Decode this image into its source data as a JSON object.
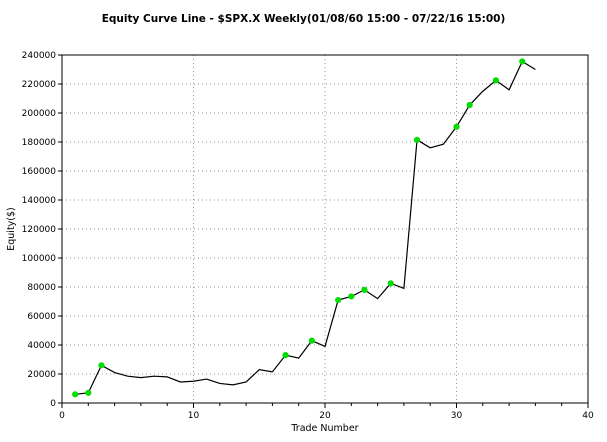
{
  "chart_data": {
    "type": "line",
    "title": "Equity Curve Line - $SPX.X Weekly(01/08/60 15:00 - 07/22/16 15:00)",
    "xlabel": "Trade Number",
    "ylabel": "Equity($)",
    "xlim": [
      0,
      40
    ],
    "ylim": [
      0,
      240000
    ],
    "x_major_ticks": [
      0,
      10,
      20,
      30,
      40
    ],
    "x_minor_step": 2,
    "y_ticks": [
      0,
      20000,
      40000,
      60000,
      80000,
      100000,
      120000,
      140000,
      160000,
      180000,
      200000,
      220000,
      240000
    ],
    "grid": {
      "x_lines": [
        10,
        20,
        30
      ],
      "y_lines": [
        20000,
        40000,
        60000,
        80000,
        100000,
        120000,
        140000,
        160000,
        180000,
        200000,
        220000
      ],
      "style": "dotted",
      "color": "#999999"
    },
    "legend_position": "none",
    "line_color": "#000000",
    "marker_color": "#00dd00",
    "axis_color": "#000000",
    "x": [
      1,
      2,
      3,
      4,
      5,
      6,
      7,
      8,
      9,
      10,
      11,
      12,
      13,
      14,
      15,
      16,
      17,
      18,
      19,
      20,
      21,
      22,
      23,
      24,
      25,
      26,
      27,
      28,
      29,
      30,
      31,
      32,
      33,
      34,
      35,
      36
    ],
    "values": [
      6000,
      7000,
      26000,
      21000,
      18500,
      17500,
      18500,
      18000,
      14500,
      15000,
      16500,
      13500,
      12500,
      14500,
      23000,
      21500,
      33000,
      31000,
      43000,
      39000,
      71000,
      73500,
      78000,
      72000,
      82500,
      79000,
      181500,
      176000,
      178500,
      190500,
      205500,
      215000,
      222500,
      216000,
      235500,
      230000
    ],
    "marker_indices": [
      0,
      1,
      2,
      16,
      18,
      20,
      21,
      22,
      24,
      26,
      29,
      30,
      32,
      34
    ]
  }
}
